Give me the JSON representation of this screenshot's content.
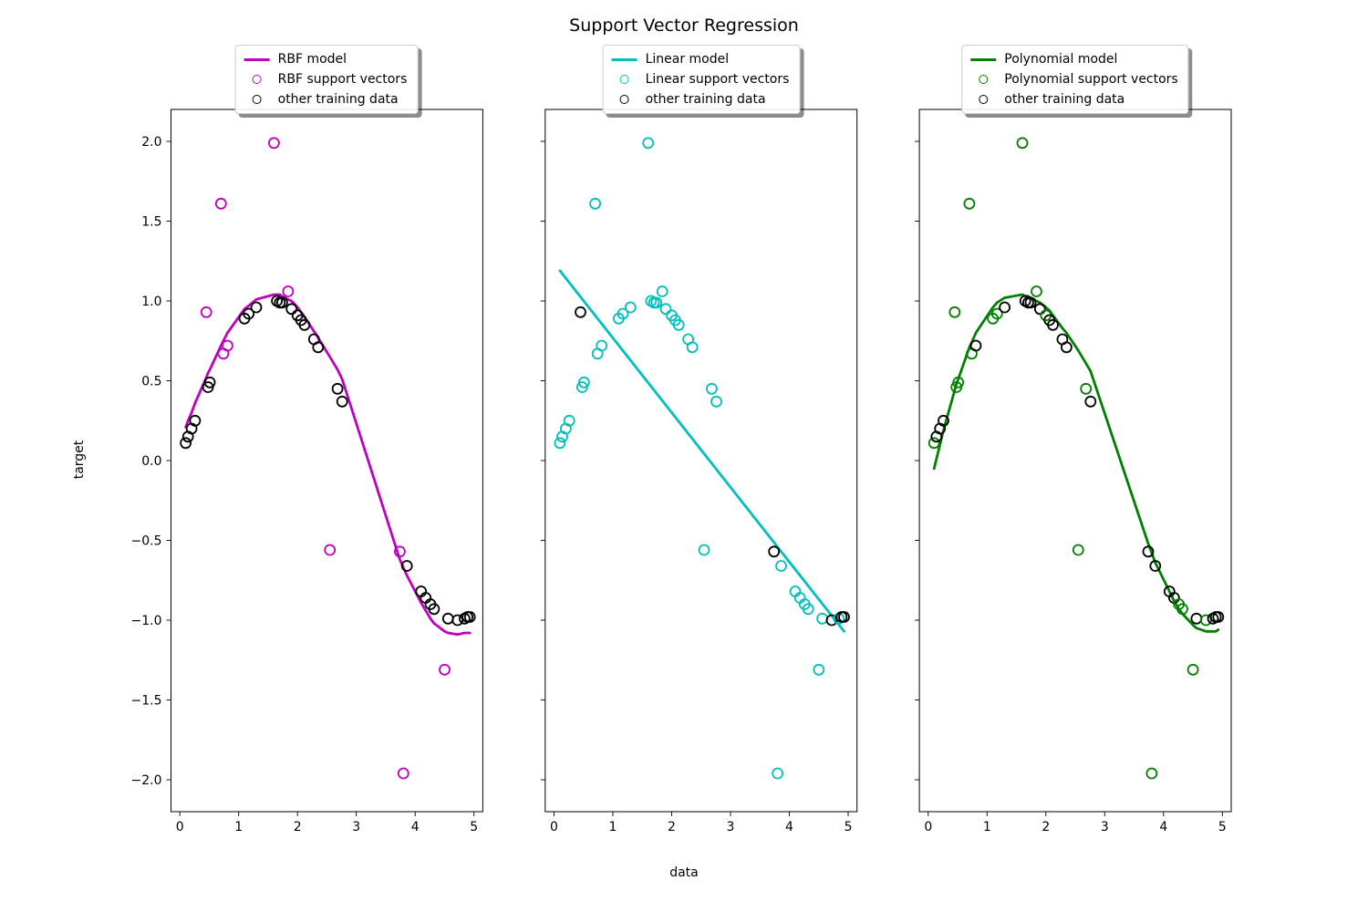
{
  "chart_data": {
    "type": "scatter",
    "title": "Support Vector Regression",
    "xlabel": "data",
    "ylabel": "target",
    "xlim": [
      -0.15,
      5.15
    ],
    "ylim": [
      -2.2,
      2.2
    ],
    "xticks": [
      0,
      1,
      2,
      3,
      4,
      5
    ],
    "yticks": [
      -2.0,
      -1.5,
      -1.0,
      -0.5,
      0.0,
      0.5,
      1.0,
      1.5,
      2.0
    ],
    "grid": false,
    "legend_position": "above-center",
    "other_training_color": "#000000",
    "training_data": {
      "x": [
        0.1,
        0.14,
        0.2,
        0.26,
        0.45,
        0.48,
        0.51,
        0.7,
        0.74,
        0.81,
        1.1,
        1.17,
        1.3,
        1.6,
        1.65,
        1.7,
        1.74,
        1.84,
        1.9,
        2.0,
        2.06,
        2.12,
        2.28,
        2.35,
        2.55,
        2.68,
        2.76,
        3.74,
        3.8,
        3.86,
        4.1,
        4.18,
        4.26,
        4.32,
        4.5,
        4.56,
        4.72,
        4.84,
        4.89,
        4.93
      ],
      "y": [
        0.11,
        0.15,
        0.2,
        0.25,
        0.93,
        0.46,
        0.49,
        1.61,
        0.67,
        0.72,
        0.89,
        0.92,
        0.96,
        1.99,
        1.0,
        0.99,
        0.99,
        1.06,
        0.95,
        0.91,
        0.88,
        0.85,
        0.76,
        0.71,
        -0.56,
        0.45,
        0.37,
        -0.57,
        -1.96,
        -0.66,
        -0.82,
        -0.86,
        -0.9,
        -0.93,
        -1.31,
        -0.99,
        -1.0,
        -0.99,
        -0.98,
        -0.98
      ]
    },
    "panels": [
      {
        "name": "rbf",
        "kernel": "RBF",
        "color": "#bf00bf",
        "legend_labels": [
          "RBF model",
          "RBF support vectors",
          "other training data"
        ],
        "support_vector_indices": [
          4,
          7,
          8,
          9,
          13,
          17,
          24,
          27,
          28,
          34
        ],
        "curve": {
          "x": [
            0.1,
            0.14,
            0.2,
            0.26,
            0.45,
            0.48,
            0.51,
            0.7,
            0.74,
            0.81,
            1.1,
            1.17,
            1.3,
            1.6,
            1.65,
            1.7,
            1.74,
            1.84,
            1.9,
            2.0,
            2.06,
            2.12,
            2.28,
            2.35,
            2.55,
            2.68,
            2.76,
            3.74,
            3.8,
            3.86,
            4.1,
            4.18,
            4.26,
            4.32,
            4.5,
            4.56,
            4.72,
            4.84,
            4.89,
            4.93
          ],
          "y": [
            0.21,
            0.25,
            0.3,
            0.36,
            0.52,
            0.55,
            0.57,
            0.72,
            0.75,
            0.8,
            0.95,
            0.97,
            1.01,
            1.04,
            1.04,
            1.04,
            1.03,
            1.01,
            1.0,
            0.96,
            0.93,
            0.9,
            0.81,
            0.77,
            0.65,
            0.57,
            0.51,
            -0.62,
            -0.67,
            -0.72,
            -0.89,
            -0.94,
            -0.99,
            -1.02,
            -1.07,
            -1.08,
            -1.09,
            -1.08,
            -1.08,
            -1.08
          ]
        }
      },
      {
        "name": "linear",
        "kernel": "Linear",
        "color": "#00bfbf",
        "legend_labels": [
          "Linear model",
          "Linear support vectors",
          "other training data"
        ],
        "support_vector_indices": [
          0,
          1,
          2,
          3,
          5,
          6,
          7,
          8,
          9,
          10,
          11,
          12,
          13,
          14,
          15,
          16,
          17,
          18,
          19,
          20,
          21,
          22,
          23,
          24,
          25,
          26,
          28,
          29,
          30,
          31,
          32,
          33,
          34,
          35,
          37
        ],
        "curve": {
          "x": [
            0.1,
            4.93
          ],
          "y": [
            1.19,
            -1.07
          ]
        }
      },
      {
        "name": "polynomial",
        "kernel": "Polynomial",
        "color": "#008000",
        "legend_labels": [
          "Polynomial model",
          "Polynomial support vectors",
          "other training data"
        ],
        "support_vector_indices": [
          0,
          4,
          5,
          6,
          7,
          8,
          10,
          11,
          13,
          17,
          19,
          24,
          25,
          28,
          32,
          33,
          34,
          36
        ],
        "curve": {
          "x": [
            0.1,
            0.14,
            0.2,
            0.26,
            0.45,
            0.48,
            0.51,
            0.7,
            0.74,
            0.81,
            1.1,
            1.17,
            1.3,
            1.6,
            1.65,
            1.7,
            1.74,
            1.84,
            1.9,
            2.0,
            2.06,
            2.12,
            2.28,
            2.35,
            2.55,
            2.68,
            2.76,
            3.74,
            3.8,
            3.86,
            4.1,
            4.18,
            4.26,
            4.32,
            4.5,
            4.56,
            4.72,
            4.84,
            4.89,
            4.93
          ],
          "y": [
            -0.05,
            0.01,
            0.1,
            0.19,
            0.44,
            0.48,
            0.51,
            0.71,
            0.74,
            0.8,
            0.96,
            0.99,
            1.02,
            1.04,
            1.03,
            1.03,
            1.02,
            1.0,
            0.99,
            0.96,
            0.94,
            0.91,
            0.83,
            0.8,
            0.69,
            0.61,
            0.56,
            -0.52,
            -0.58,
            -0.64,
            -0.82,
            -0.88,
            -0.93,
            -0.96,
            -1.03,
            -1.05,
            -1.07,
            -1.07,
            -1.07,
            -1.06
          ]
        }
      }
    ]
  }
}
